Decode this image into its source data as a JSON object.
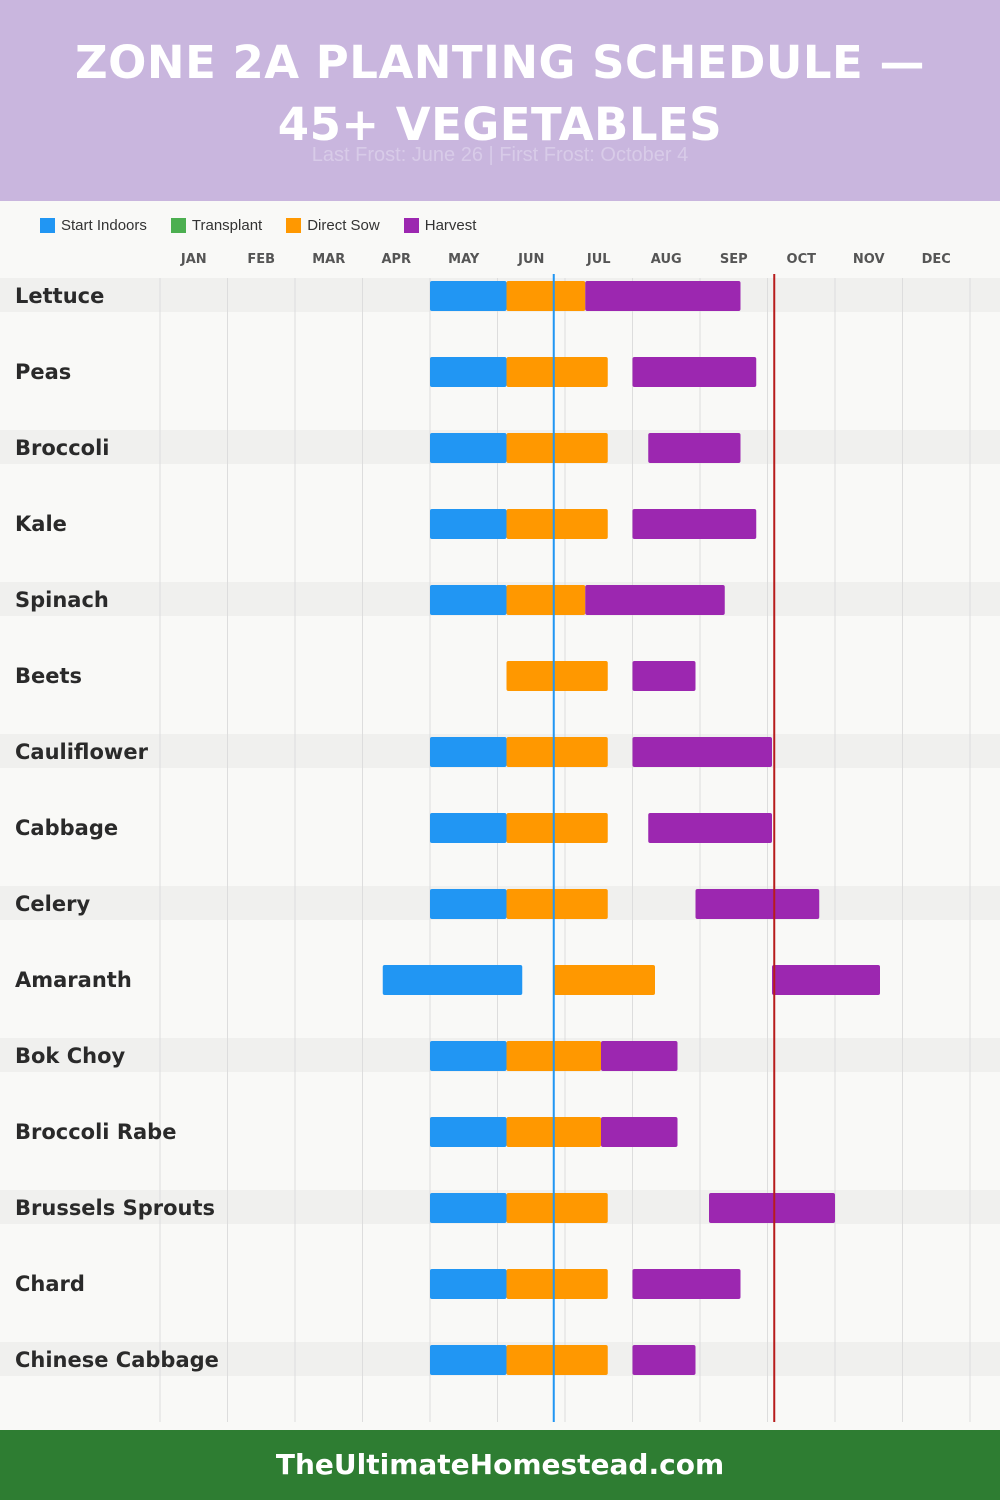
{
  "header": {
    "title_line1": "ZONE 2A PLANTING SCHEDULE —",
    "title_line2": "45+ VEGETABLES",
    "subtitle": "Last Frost: June 26 | First Frost: October 4"
  },
  "legend": [
    {
      "label": "Start Indoors",
      "color": "#2196f3"
    },
    {
      "label": "Transplant",
      "color": "#4caf50"
    },
    {
      "label": "Direct Sow",
      "color": "#ff9800"
    },
    {
      "label": "Harvest",
      "color": "#9c27b0"
    }
  ],
  "footer": {
    "text": "TheUltimateHomestead.com"
  },
  "chart_data": {
    "type": "gantt",
    "months": [
      "JAN",
      "FEB",
      "MAR",
      "APR",
      "MAY",
      "JUN",
      "JUL",
      "AUG",
      "SEP",
      "OCT",
      "NOV",
      "DEC"
    ],
    "markers": [
      {
        "label": "Last Frost",
        "date": "June 26",
        "color": "#2196f3"
      },
      {
        "label": "First Frost",
        "date": "October 4",
        "color": "#b71c1c"
      }
    ],
    "rows": [
      {
        "name": "Lettuce",
        "tasks": [
          {
            "type": "start_indoors",
            "start": "May 1",
            "end": "Jun 5"
          },
          {
            "type": "direct_sow",
            "start": "Jun 5",
            "end": "Jul 10"
          },
          {
            "type": "harvest",
            "start": "Jul 10",
            "end": "Sep 19"
          }
        ]
      },
      {
        "name": "Peas",
        "tasks": [
          {
            "type": "start_indoors",
            "start": "May 1",
            "end": "Jun 5"
          },
          {
            "type": "direct_sow",
            "start": "Jun 5",
            "end": "Jul 20"
          },
          {
            "type": "harvest",
            "start": "Aug 1",
            "end": "Sep 26"
          }
        ]
      },
      {
        "name": "Broccoli",
        "tasks": [
          {
            "type": "start_indoors",
            "start": "May 1",
            "end": "Jun 5"
          },
          {
            "type": "direct_sow",
            "start": "Jun 5",
            "end": "Jul 20"
          },
          {
            "type": "harvest",
            "start": "Aug 8",
            "end": "Sep 19"
          }
        ]
      },
      {
        "name": "Kale",
        "tasks": [
          {
            "type": "start_indoors",
            "start": "May 1",
            "end": "Jun 5"
          },
          {
            "type": "direct_sow",
            "start": "Jun 5",
            "end": "Jul 20"
          },
          {
            "type": "harvest",
            "start": "Aug 1",
            "end": "Sep 26"
          }
        ]
      },
      {
        "name": "Spinach",
        "tasks": [
          {
            "type": "start_indoors",
            "start": "May 1",
            "end": "Jun 5"
          },
          {
            "type": "direct_sow",
            "start": "Jun 5",
            "end": "Jul 10"
          },
          {
            "type": "harvest",
            "start": "Jul 10",
            "end": "Sep 12"
          }
        ]
      },
      {
        "name": "Beets",
        "tasks": [
          {
            "type": "direct_sow",
            "start": "Jun 5",
            "end": "Jul 20"
          },
          {
            "type": "harvest",
            "start": "Aug 1",
            "end": "Aug 29"
          }
        ]
      },
      {
        "name": "Cauliflower",
        "tasks": [
          {
            "type": "start_indoors",
            "start": "May 1",
            "end": "Jun 5"
          },
          {
            "type": "direct_sow",
            "start": "Jun 5",
            "end": "Jul 20"
          },
          {
            "type": "harvest",
            "start": "Aug 1",
            "end": "Oct 3"
          }
        ]
      },
      {
        "name": "Cabbage",
        "tasks": [
          {
            "type": "start_indoors",
            "start": "May 1",
            "end": "Jun 5"
          },
          {
            "type": "direct_sow",
            "start": "Jun 5",
            "end": "Jul 20"
          },
          {
            "type": "harvest",
            "start": "Aug 8",
            "end": "Oct 3"
          }
        ]
      },
      {
        "name": "Celery",
        "tasks": [
          {
            "type": "start_indoors",
            "start": "May 1",
            "end": "Jun 5"
          },
          {
            "type": "direct_sow",
            "start": "Jun 5",
            "end": "Jul 20"
          },
          {
            "type": "harvest",
            "start": "Aug 29",
            "end": "Oct 24"
          }
        ]
      },
      {
        "name": "Amaranth",
        "tasks": [
          {
            "type": "start_indoors",
            "start": "Apr 10",
            "end": "Jun 12"
          },
          {
            "type": "direct_sow",
            "start": "Jun 26",
            "end": "Aug 11"
          },
          {
            "type": "harvest",
            "start": "Oct 3",
            "end": "Nov 21"
          }
        ]
      },
      {
        "name": "Bok Choy",
        "tasks": [
          {
            "type": "start_indoors",
            "start": "May 1",
            "end": "Jun 5"
          },
          {
            "type": "direct_sow",
            "start": "Jun 5",
            "end": "Jul 17"
          },
          {
            "type": "harvest",
            "start": "Jul 17",
            "end": "Aug 21"
          }
        ]
      },
      {
        "name": "Broccoli Rabe",
        "tasks": [
          {
            "type": "start_indoors",
            "start": "May 1",
            "end": "Jun 5"
          },
          {
            "type": "direct_sow",
            "start": "Jun 5",
            "end": "Jul 17"
          },
          {
            "type": "harvest",
            "start": "Jul 17",
            "end": "Aug 21"
          }
        ]
      },
      {
        "name": "Brussels Sprouts",
        "tasks": [
          {
            "type": "start_indoors",
            "start": "May 1",
            "end": "Jun 5"
          },
          {
            "type": "direct_sow",
            "start": "Jun 5",
            "end": "Jul 20"
          },
          {
            "type": "harvest",
            "start": "Sep 5",
            "end": "Oct 31"
          }
        ]
      },
      {
        "name": "Chard",
        "tasks": [
          {
            "type": "start_indoors",
            "start": "May 1",
            "end": "Jun 5"
          },
          {
            "type": "direct_sow",
            "start": "Jun 5",
            "end": "Jul 20"
          },
          {
            "type": "harvest",
            "start": "Aug 1",
            "end": "Sep 19"
          }
        ]
      },
      {
        "name": "Chinese Cabbage",
        "tasks": [
          {
            "type": "start_indoors",
            "start": "May 1",
            "end": "Jun 5"
          },
          {
            "type": "direct_sow",
            "start": "Jun 5",
            "end": "Jul 20"
          },
          {
            "type": "harvest",
            "start": "Aug 1",
            "end": "Aug 29"
          }
        ]
      }
    ]
  }
}
